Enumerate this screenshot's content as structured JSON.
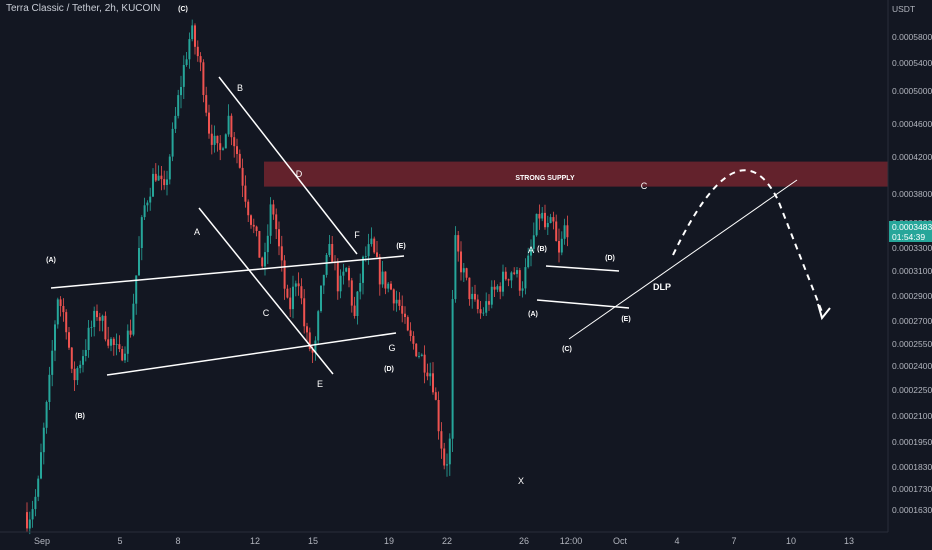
{
  "header": {
    "title": "Terra Classic / Tether, 2h, KUCOIN"
  },
  "price_axis": {
    "currency": "USDT",
    "current_price": "0.00034834",
    "countdown": "01:54:39"
  },
  "chart_data": {
    "type": "candlestick",
    "title": "Terra Classic / Tether, 2h, KUCOIN",
    "ylabel": "USDT",
    "ylim": [
      0.000155,
      0.00062
    ],
    "y_ticks": [
      "0.00058000",
      "0.00054000",
      "0.00050000",
      "0.00046000",
      "0.00042000",
      "0.00038000",
      "0.00035000",
      "0.00033000",
      "0.00031000",
      "0.00029000",
      "0.00027000",
      "0.00025500",
      "0.00024000",
      "0.00022500",
      "0.00021000",
      "0.00019500",
      "0.00018300",
      "0.00017300",
      "0.00016300"
    ],
    "x_ticks": [
      "Sep",
      "5",
      "8",
      "12",
      "15",
      "19",
      "22",
      "26",
      "12:00",
      "Oct",
      "4",
      "7",
      "10",
      "13"
    ],
    "x_range_days": [
      0,
      46
    ],
    "current_price": 0.00034834,
    "path": [
      [
        0,
        0.000162
      ],
      [
        0.3,
        0.000158
      ],
      [
        1.2,
        0.000172
      ],
      [
        2.2,
        0.000225
      ],
      [
        3,
        0.00029
      ],
      [
        3.8,
        0.000268
      ],
      [
        4.3,
        0.000229
      ],
      [
        5.2,
        0.000248
      ],
      [
        6.5,
        0.000277
      ],
      [
        7.5,
        0.00026
      ],
      [
        8.5,
        0.000246
      ],
      [
        9.5,
        0.000265
      ],
      [
        10.7,
        0.000365
      ],
      [
        11.7,
        0.000405
      ],
      [
        12.5,
        0.00038
      ],
      [
        13.2,
        0.00044
      ],
      [
        14.1,
        0.00052
      ],
      [
        14.9,
        0.00059
      ],
      [
        15.8,
        0.00053
      ],
      [
        16.5,
        0.000455
      ],
      [
        17.4,
        0.00042
      ],
      [
        18.2,
        0.00047
      ],
      [
        19.1,
        0.00042
      ],
      [
        19.9,
        0.00037
      ],
      [
        20.6,
        0.00034
      ],
      [
        21.4,
        0.00031
      ],
      [
        22.1,
        0.000372
      ],
      [
        22.8,
        0.000325
      ],
      [
        23.6,
        0.000275
      ],
      [
        24.4,
        0.000312
      ],
      [
        25.1,
        0.00026
      ],
      [
        25.9,
        0.000245
      ],
      [
        26.7,
        0.000307
      ],
      [
        27.4,
        0.00033
      ],
      [
        28.1,
        0.000295
      ],
      [
        28.8,
        0.000312
      ],
      [
        29.5,
        0.000272
      ],
      [
        30.3,
        0.00032
      ],
      [
        31.0,
        0.00033
      ],
      [
        31.8,
        0.000305
      ],
      [
        32.6,
        0.000298
      ],
      [
        33.4,
        0.000285
      ],
      [
        34.2,
        0.00026
      ],
      [
        35.0,
        0.000252
      ],
      [
        35.8,
        0.000242
      ],
      [
        36.4,
        0.000235
      ],
      [
        37.1,
        0.0002
      ],
      [
        37.6,
        0.000182
      ],
      [
        38.0,
        0.000195
      ],
      [
        38.4,
        0.000335
      ],
      [
        38.9,
        0.000318
      ],
      [
        39.6,
        0.000296
      ],
      [
        40.2,
        0.000282
      ],
      [
        40.8,
        0.000275
      ],
      [
        41.5,
        0.000287
      ],
      [
        42.2,
        0.000296
      ],
      [
        42.9,
        0.000305
      ],
      [
        43.6,
        0.000312
      ],
      [
        44.4,
        0.000298
      ],
      [
        45.1,
        0.00032
      ],
      [
        45.7,
        0.000348
      ],
      [
        46.1,
        0.000362
      ],
      [
        46.6,
        0.000342
      ],
      [
        47.2,
        0.00035
      ],
      [
        47.7,
        0.00032
      ],
      [
        48.3,
        0.000348
      ]
    ],
    "supply_zone": {
      "label": "STRONG SUPPLY",
      "from": 0.000388,
      "to": 0.000415
    },
    "annotations": [
      "(A)",
      "(B)",
      "(C)",
      "(D)",
      "(E)",
      "A",
      "B",
      "C",
      "D",
      "E",
      "F",
      "G",
      "X",
      "(A)",
      "(B)",
      "(C)",
      "(D)",
      "(E)",
      "A",
      "C",
      "DLP"
    ]
  }
}
